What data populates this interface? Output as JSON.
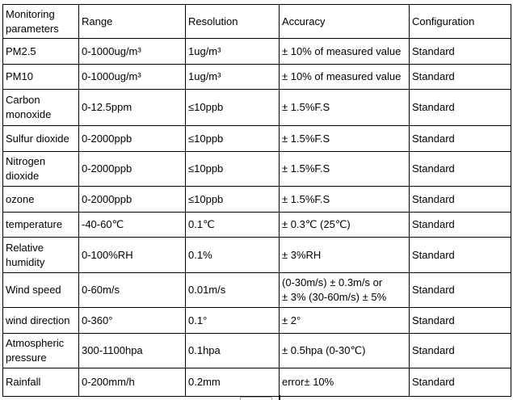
{
  "table": {
    "headers": [
      "Monitoring parameters",
      "Range",
      "Resolution",
      "Accuracy",
      "Configuration"
    ],
    "rows": [
      [
        "PM2.5",
        "0-1000ug/m³",
        "1ug/m³",
        "± 10% of measured value",
        "Standard"
      ],
      [
        "PM10",
        "0-1000ug/m³",
        "1ug/m³",
        "± 10% of measured value",
        "Standard"
      ],
      [
        "Carbon monoxide",
        "0-12.5ppm",
        "≤10ppb",
        "± 1.5%F.S",
        "Standard"
      ],
      [
        "Sulfur dioxide",
        "0-2000ppb",
        "≤10ppb",
        "± 1.5%F.S",
        "Standard"
      ],
      [
        "Nitrogen dioxide",
        "0-2000ppb",
        "≤10ppb",
        "± 1.5%F.S",
        "Standard"
      ],
      [
        "ozone",
        "0-2000ppb",
        "≤10ppb",
        "± 1.5%F.S",
        "Standard"
      ],
      [
        "temperature",
        "-40-60℃",
        "0.1℃",
        "± 0.3℃ (25℃)",
        "Standard"
      ],
      [
        "Relative humidity",
        "0-100%RH",
        "0.1%",
        "± 3%RH",
        "Standard"
      ],
      [
        "Wind speed",
        "0-60m/s",
        "0.01m/s",
        "(0-30m/s) ± 0.3m/s or\n± 3% (30-60m/s) ± 5%",
        "Standard"
      ],
      [
        "wind direction",
        "0-360°",
        "0.1°",
        "± 2°",
        "Standard"
      ],
      [
        "Atmospheric pressure",
        "300-1100hpa",
        "0.1hpa",
        "± 0.5hpa (0-30℃)",
        "Standard"
      ],
      [
        "Rainfall",
        "0-200mm/h",
        "0.2mm",
        "error± 10%",
        "Standard"
      ]
    ],
    "colors": {
      "border": "#000000",
      "text": "#000000",
      "background": "#ffffff"
    }
  }
}
